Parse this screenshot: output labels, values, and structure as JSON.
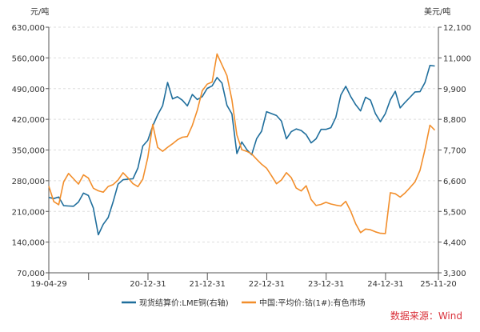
{
  "chart_data": {
    "type": "line",
    "left_unit": "元/吨",
    "right_unit": "美元/吨",
    "left_ylim": [
      70000,
      630000
    ],
    "right_ylim": [
      3300,
      12100
    ],
    "left_ticks": [
      "630,000",
      "560,000",
      "490,000",
      "420,000",
      "350,000",
      "280,000",
      "210,000",
      "140,000",
      "70,000"
    ],
    "right_ticks": [
      "12,100",
      "11,000",
      "9,900",
      "8,800",
      "7,700",
      "6,600",
      "5,500",
      "4,400",
      "3,300"
    ],
    "x_tick_labels": [
      {
        "label": "19-04-29",
        "t": 2019.33
      },
      {
        "label": "",
        "t": 2020.0
      },
      {
        "label": "20-12-31",
        "t": 2021.0
      },
      {
        "label": "21-12-31",
        "t": 2022.0
      },
      {
        "label": "22-12-31",
        "t": 2023.0
      },
      {
        "label": "23-12-31",
        "t": 2024.0
      },
      {
        "label": "24-12-31",
        "t": 2025.0
      },
      {
        "label": "25-11-20",
        "t": 2025.89
      }
    ],
    "xlim": [
      2019.33,
      2025.89
    ],
    "grid": true,
    "legend_position": "bottom",
    "series": [
      {
        "name": "现货结算价:LME铜(右轴)",
        "axis": "right",
        "color": "#1f6e9c",
        "start": 2019.33,
        "step_months": 1,
        "values": [
          6000,
          5900,
          5950,
          5700,
          5750,
          5750,
          5850,
          6100,
          6000,
          5600,
          4700,
          5100,
          5300,
          5800,
          6400,
          6600,
          6700,
          6750,
          7100,
          7800,
          7950,
          8500,
          9000,
          9400,
          10200,
          9500,
          9500,
          9400,
          9300,
          9800,
          9600,
          9600,
          9800,
          9900,
          10300,
          10200,
          9400,
          9000,
          7500,
          7900,
          7700,
          7600,
          8200,
          8400,
          9000,
          8900,
          8900,
          8800,
          8200,
          8400,
          8400,
          8300,
          8200,
          8000,
          8200,
          8500,
          8400,
          8400,
          8800,
          9700,
          10100,
          9700,
          9300,
          9000,
          9500,
          9500,
          9100,
          8800,
          9000,
          9400,
          9700,
          9200,
          9500,
          9700,
          9800,
          9700,
          10000,
          10700,
          10800
        ]
      },
      {
        "name": "中国:平均价:钴(1#):有色市场",
        "axis": "left",
        "color": "#f28e2b",
        "start": 2019.33,
        "step_months": 1,
        "values": [
          265000,
          230000,
          225000,
          280000,
          300000,
          285000,
          270000,
          290000,
          285000,
          265000,
          260000,
          255000,
          265000,
          268000,
          280000,
          300000,
          290000,
          275000,
          265000,
          280000,
          330000,
          410000,
          360000,
          350000,
          355000,
          360000,
          370000,
          380000,
          385000,
          410000,
          440000,
          480000,
          495000,
          505000,
          575000,
          550000,
          520000,
          460000,
          380000,
          350000,
          350000,
          345000,
          330000,
          315000,
          305000,
          290000,
          275000,
          285000,
          300000,
          285000,
          260000,
          255000,
          270000,
          240000,
          225000,
          225000,
          228000,
          225000,
          225000,
          225000,
          235000,
          210000,
          180000,
          160000,
          170000,
          170000,
          165000,
          160000,
          158000,
          250000,
          250000,
          245000,
          255000,
          265000,
          275000,
          300000,
          350000,
          410000,
          400000
        ]
      }
    ]
  },
  "source": "数据来源：Wind"
}
